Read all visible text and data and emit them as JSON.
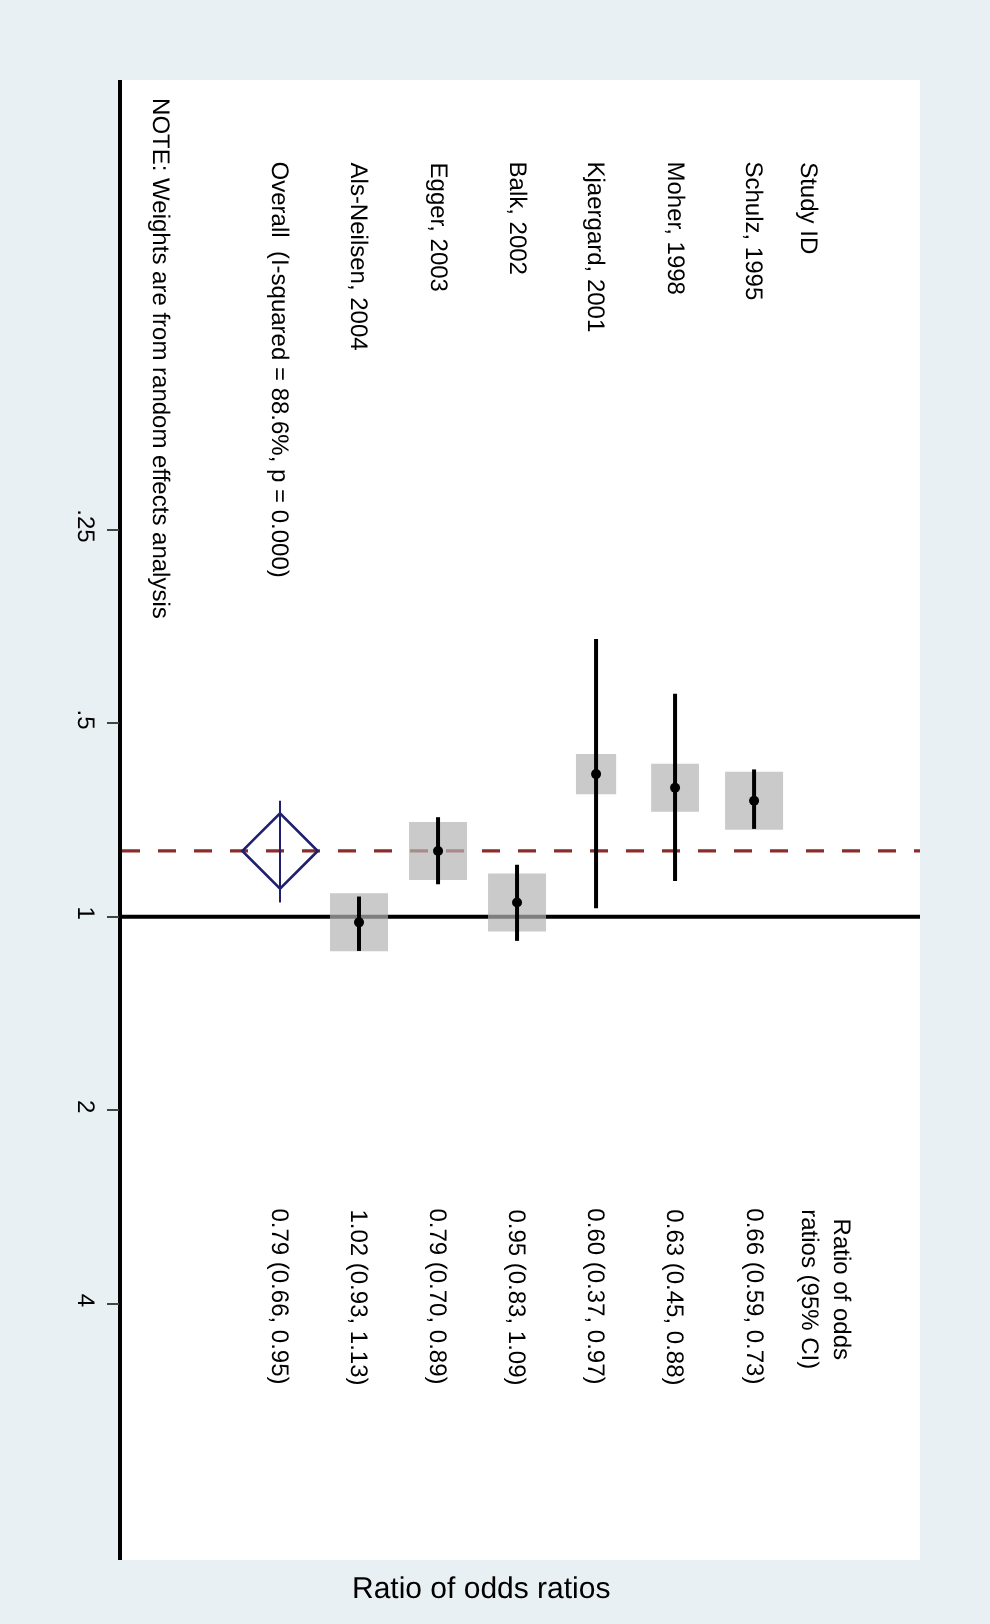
{
  "chart_data": {
    "type": "scatter",
    "categories": [
      "Overall  (I-squared = 88.6%, p = 0.000)",
      "Als-Neilsen, 2004",
      "Egger, 2003",
      "Balk, 2002",
      "Kjaergard, 2001",
      "Moher, 1998",
      "Schulz, 1995"
    ],
    "series": [
      {
        "type": "bubble",
        "marker": "square",
        "color": "#b4b4b4",
        "values": [
          null,
          1.02,
          0.79,
          0.95,
          0.6,
          0.63,
          0.66
        ],
        "sizes": [
          null,
          1,
          1,
          1,
          0.48,
          0.68,
          1
        ]
      },
      {
        "type": "scatter",
        "marker": "circle",
        "color": "#000000",
        "values": [
          null,
          1.02,
          0.79,
          0.95,
          0.6,
          0.63,
          0.66
        ],
        "errors": [
          null,
          [
            0.93,
            1.13
          ],
          [
            0.7,
            0.89
          ],
          [
            0.83,
            1.09
          ],
          [
            0.37,
            0.97
          ],
          [
            0.45,
            0.88
          ],
          [
            0.59,
            0.73
          ]
        ]
      },
      {
        "type": "scatter",
        "marker": "diamond",
        "color": "#1f1f6e",
        "values": [
          0.79,
          null,
          null,
          null,
          null,
          null,
          null
        ],
        "errors": [
          [
            0.66,
            0.95
          ],
          null,
          null,
          null,
          null,
          null,
          null
        ]
      }
    ],
    "value_labels": [
      "0.79 (0.66, 0.95)",
      "1.02 (0.93, 1.13)",
      "0.79 (0.70, 0.89)",
      "0.95 (0.83, 1.09)",
      "0.60 (0.37, 0.97)",
      "0.63 (0.45, 0.88)",
      "0.66 (0.59, 0.73)"
    ],
    "annotations": [
      "Study ID",
      "Ratio of odds\nratios (95% CI)",
      "NOTE: Weights are from random effects analysis",
      "Ratio of odds ratios"
    ],
    "log": "y",
    "ylim": [
      10,
      0.05
    ],
    "yticks": [
      {
        "value": 0.25,
        "label": ".25"
      },
      {
        "value": 0.5,
        "label": ".5"
      },
      1,
      2,
      4
    ],
    "ref_lines": [
      {
        "axis": "y",
        "value": 1,
        "color": "#000000",
        "line_style": "solid"
      },
      {
        "axis": "y",
        "value": 0.79,
        "color": "#8b2d2d",
        "line_style": "dashed"
      }
    ],
    "grid": false
  }
}
